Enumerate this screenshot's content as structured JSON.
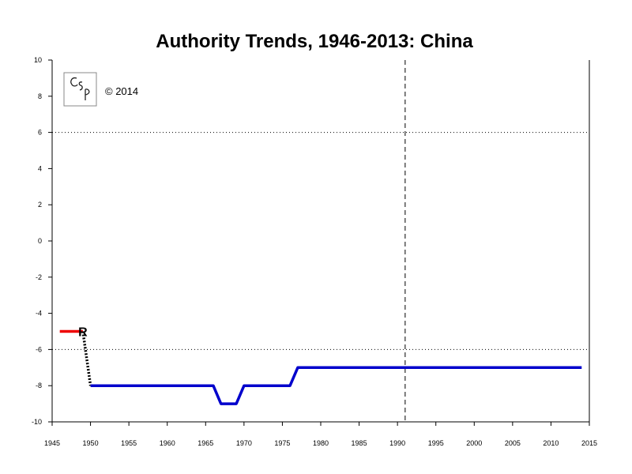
{
  "chart_data": {
    "type": "line",
    "title": "Authority Trends, 1946-2013: China",
    "xlabel": "",
    "ylabel": "",
    "xlim": [
      1945,
      2015
    ],
    "ylim": [
      -10,
      10
    ],
    "x_ticks": [
      1945,
      1950,
      1955,
      1960,
      1965,
      1970,
      1975,
      1980,
      1985,
      1990,
      1995,
      2000,
      2005,
      2010,
      2015
    ],
    "y_ticks": [
      10,
      8,
      6,
      4,
      2,
      0,
      -2,
      -4,
      -6,
      -8,
      -10
    ],
    "reference_lines": [
      {
        "axis": "y",
        "value": 6,
        "style": "dotted"
      },
      {
        "axis": "y",
        "value": -6,
        "style": "dotted"
      },
      {
        "axis": "x",
        "value": 1991,
        "style": "dashed"
      }
    ],
    "series": [
      {
        "color": "#ee0000",
        "style": "solid",
        "points": [
          [
            1946,
            -5
          ],
          [
            1949,
            -5
          ]
        ]
      },
      {
        "color": "#000000",
        "style": "dotted",
        "points": [
          [
            1949,
            -5
          ],
          [
            1950,
            -8
          ]
        ]
      },
      {
        "color": "#0000cc",
        "style": "solid",
        "points": [
          [
            1950,
            -8
          ],
          [
            1966,
            -8
          ],
          [
            1967,
            -9
          ],
          [
            1969,
            -9
          ],
          [
            1970,
            -8
          ],
          [
            1976,
            -8
          ],
          [
            1977,
            -7
          ],
          [
            2014,
            -7
          ]
        ]
      }
    ],
    "annotations": [
      {
        "text": "R",
        "x": 1949,
        "y": -5
      }
    ]
  },
  "logo": {
    "text": "CSP"
  },
  "copyright": "© 2014"
}
